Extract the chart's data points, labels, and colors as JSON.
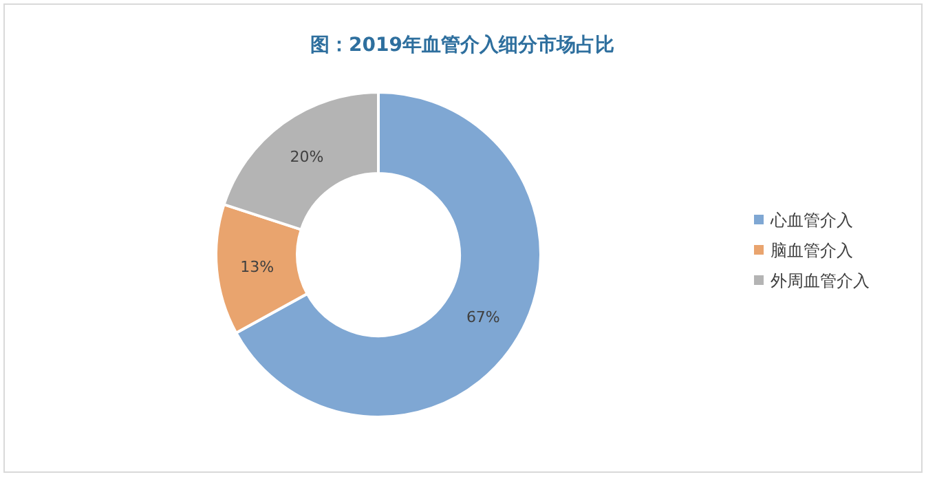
{
  "chart_data": {
    "type": "donut",
    "title": "图：2019年血管介入细分市场占比",
    "categories": [
      "心血管介入",
      "脑血管介入",
      "外周血管介入"
    ],
    "values": [
      67,
      13,
      20
    ],
    "colors": [
      "#7fa7d3",
      "#e9a46e",
      "#b4b4b4"
    ],
    "value_labels": [
      "67%",
      "13%",
      "20%"
    ],
    "legend": "right"
  }
}
